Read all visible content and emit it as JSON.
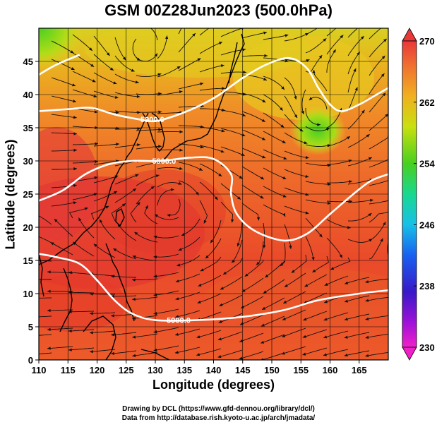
{
  "title": "GSM 00Z28Jun2023 (500.0hPa)",
  "xlabel": "Longitude (degrees)",
  "ylabel": "Latitude  (degrees)",
  "credit_line1": "Drawing by DCL (https://www.gfd-dennou.org/library/dcl/)",
  "credit_line2": "Data from http://database.rish.kyoto-u.ac.jp/arch/jmadata/",
  "map": {
    "lon_range": [
      110,
      170
    ],
    "lat_range": [
      0,
      50
    ],
    "x_ticks": [
      "110",
      "115",
      "120",
      "125",
      "130",
      "135",
      "140",
      "145",
      "150",
      "155",
      "160",
      "165"
    ],
    "y_ticks": [
      "0",
      "5",
      "10",
      "15",
      "20",
      "25",
      "30",
      "35",
      "40",
      "45"
    ],
    "colorbar_ticks": [
      "270",
      "262",
      "254",
      "246",
      "238",
      "230"
    ],
    "colorbar_range": [
      230,
      270
    ],
    "contour_labels": [
      "5900.0",
      "5900.0",
      "5900.0"
    ],
    "contour_label_positions": [
      {
        "lon": 129.5,
        "lat": 36.3
      },
      {
        "lon": 131.5,
        "lat": 30.0
      },
      {
        "lon": 134.0,
        "lat": 6.0
      }
    ],
    "contour_5900_west": [
      [
        110,
        16
      ],
      [
        113,
        15.5
      ],
      [
        117,
        14.5
      ],
      [
        120,
        12
      ],
      [
        123,
        9
      ],
      [
        126,
        7
      ],
      [
        130,
        6
      ],
      [
        137,
        6
      ],
      [
        145,
        6.5
      ],
      [
        152,
        7.5
      ],
      [
        158,
        9
      ],
      [
        165,
        10
      ],
      [
        170,
        10.5
      ]
    ],
    "contour_5900_east": [
      [
        110,
        24
      ],
      [
        114,
        25.5
      ],
      [
        118,
        28
      ],
      [
        122,
        29.5
      ],
      [
        126,
        30
      ],
      [
        131,
        30
      ],
      [
        136,
        30.5
      ],
      [
        140,
        30.3
      ],
      [
        143,
        28
      ],
      [
        143,
        25
      ],
      [
        144,
        22
      ],
      [
        147,
        19.5
      ],
      [
        152,
        18
      ],
      [
        156,
        19
      ],
      [
        160,
        22
      ],
      [
        164,
        25
      ],
      [
        167,
        27
      ],
      [
        170,
        28
      ]
    ],
    "contour_5850": [
      [
        110,
        37.5
      ],
      [
        115,
        37.8
      ],
      [
        119,
        38
      ],
      [
        123,
        37
      ],
      [
        127,
        36.3
      ],
      [
        130,
        36
      ],
      [
        134,
        37
      ],
      [
        138,
        38.5
      ],
      [
        141,
        40
      ],
      [
        145,
        42.5
      ],
      [
        149,
        44.5
      ],
      [
        153,
        45.5
      ],
      [
        156,
        44
      ],
      [
        158,
        41
      ],
      [
        160,
        38.5
      ],
      [
        162,
        37.5
      ],
      [
        165,
        38.5
      ],
      [
        168,
        40
      ],
      [
        170,
        41
      ]
    ],
    "contour_5800": [
      [
        110,
        43
      ],
      [
        113,
        44.5
      ],
      [
        117,
        46
      ]
    ],
    "high_centers": [
      {
        "lon": 112,
        "lat": 28
      }
    ],
    "low_centers": [
      {
        "lon": 158,
        "lat": 36.5
      },
      {
        "lon": 111.5,
        "lat": 48
      }
    ],
    "colors": {
      "red": "#e23a2a",
      "orange": "#f2782a",
      "yellow": "#e6d21e",
      "green": "#5fd22a",
      "contour": "#ffffff",
      "coast": "#000000",
      "arrows": "#111111"
    }
  }
}
